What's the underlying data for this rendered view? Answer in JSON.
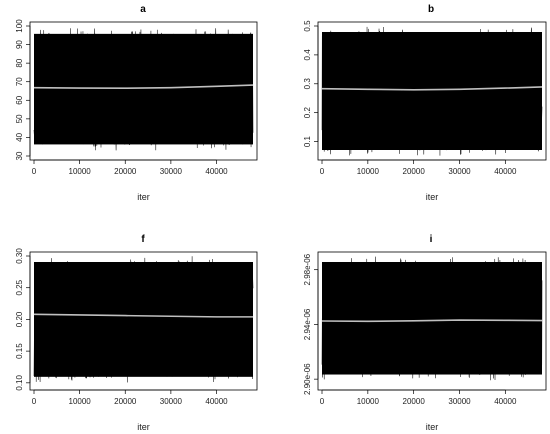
{
  "chart_data": [
    {
      "type": "line",
      "title": "a",
      "xlabel": "iter",
      "ylabel": "",
      "xlim": [
        0,
        48000
      ],
      "ylim": [
        30,
        100
      ],
      "x_ticks": [
        "0",
        "10000",
        "20000",
        "30000",
        "40000"
      ],
      "y_ticks": [
        "30",
        "40",
        "50",
        "60",
        "70",
        "80",
        "90",
        "100"
      ],
      "series": [
        {
          "values_description_range": [
            33,
            99
          ],
          "trend": {
            "x": [
              0,
              10000,
              20000,
              30000,
              40000,
              48000
            ],
            "y": [
              66.8,
              66.6,
              66.5,
              66.8,
              67.5,
              68.2
            ]
          }
        }
      ]
    },
    {
      "type": "line",
      "title": "b",
      "xlabel": "iter",
      "ylabel": "",
      "xlim": [
        0,
        48000
      ],
      "ylim": [
        0.05,
        0.5
      ],
      "x_ticks": [
        "0",
        "10000",
        "20000",
        "30000",
        "40000"
      ],
      "y_ticks": [
        "0.1",
        "0.2",
        "0.3",
        "0.4",
        "0.5"
      ],
      "series": [
        {
          "values_description_range": [
            0.05,
            0.5
          ],
          "trend": {
            "x": [
              0,
              10000,
              20000,
              30000,
              40000,
              48000
            ],
            "y": [
              0.283,
              0.281,
              0.279,
              0.281,
              0.285,
              0.289
            ]
          }
        }
      ]
    },
    {
      "type": "line",
      "title": "f",
      "xlabel": "iter",
      "ylabel": "",
      "xlim": [
        0,
        48000
      ],
      "ylim": [
        0.095,
        0.3
      ],
      "x_ticks": [
        "0",
        "10000",
        "20000",
        "30000",
        "40000"
      ],
      "y_ticks": [
        "0.10",
        "0.15",
        "0.20",
        "0.25",
        "0.30"
      ],
      "series": [
        {
          "values_description_range": [
            0.1,
            0.3
          ],
          "trend": {
            "x": [
              0,
              10000,
              20000,
              30000,
              40000,
              48000
            ],
            "y": [
              0.208,
              0.207,
              0.206,
              0.205,
              0.204,
              0.204
            ]
          }
        }
      ]
    },
    {
      "type": "line",
      "title": "i",
      "xlabel": "iter",
      "ylabel": "",
      "xlim": [
        0,
        48000
      ],
      "ylim": [
        2.895e-06,
        2.99e-06
      ],
      "x_ticks": [
        "0",
        "10000",
        "20000",
        "30000",
        "40000"
      ],
      "y_ticks": [
        "2.90e-06",
        "2.94e-06",
        "2.98e-06"
      ],
      "series": [
        {
          "values_description_range": [
            2.899e-06,
            2.99e-06
          ],
          "trend": {
            "x": [
              0,
              10000,
              20000,
              30000,
              40000,
              48000
            ],
            "y": [
              2.9425e-06,
              2.9423e-06,
              2.9426e-06,
              2.9432e-06,
              2.943e-06,
              2.9428e-06
            ]
          }
        }
      ]
    }
  ]
}
